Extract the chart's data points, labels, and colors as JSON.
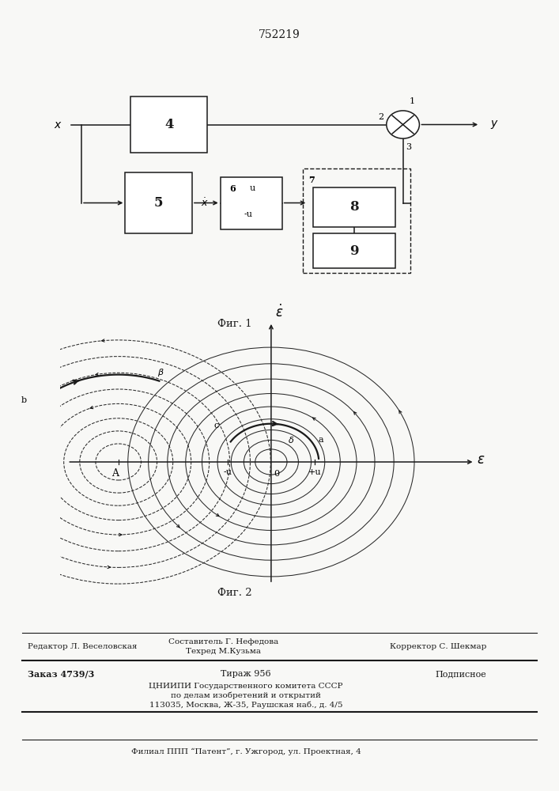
{
  "patent_number": "752219",
  "bg_color": "#f8f8f6",
  "line_color": "#1a1a1a",
  "fig1_caption": "Фиг. 1",
  "fig2_caption": "Фиг. 2",
  "footer_line1_left": "Редактор Л. Веселовская",
  "footer_line1_center1": "Составитель Г. Нефедова",
  "footer_line1_center2": "Техред М.Кузьма",
  "footer_line1_right": "Корректор С. Шекмар",
  "footer_line2_left": "Заказ 4739/3",
  "footer_line2_center": "Тираж 956",
  "footer_line2_right": "Подписное",
  "footer_line3": "ЦНИИПИ Государственного комитета СССР",
  "footer_line4": "по делам изобретений и открытий",
  "footer_line5": "113035, Москва, Ж-35, Раушская наб., д. 4/5",
  "footer_bottom": "Филиал ППП “Патент”, г. Ужгород, ул. Проектная, 4"
}
